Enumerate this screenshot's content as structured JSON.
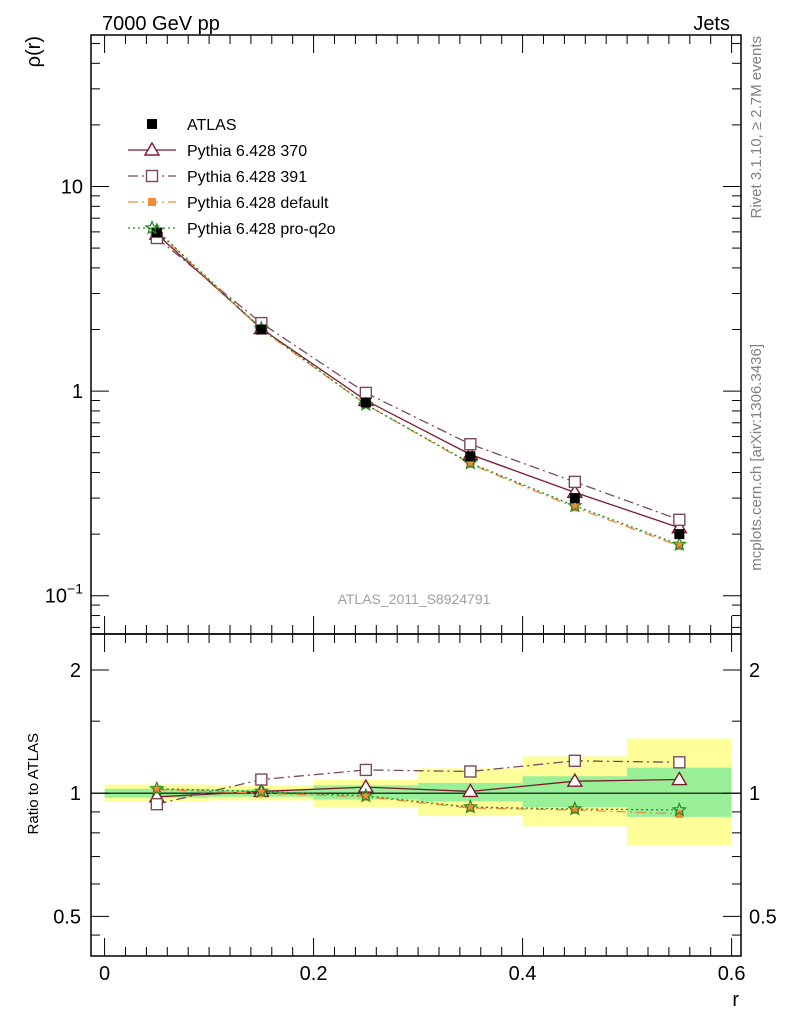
{
  "header": {
    "left": "7000 GeV pp",
    "right": "Jets"
  },
  "side_labels": {
    "rivet": "Rivet 3.1.10, ≥ 2.7M events",
    "mcplots": "mcplots.cern.ch [arXiv:1306.3436]"
  },
  "watermark": "ATLAS_2011_S8924791",
  "chart_data": [
    {
      "type": "line",
      "panel": "main",
      "ylabel": "ρ(r)",
      "yscale": "log",
      "ylim": [
        0.065,
        55
      ],
      "xlim": [
        -0.013,
        0.609
      ],
      "yticks": [
        {
          "v": 0.1,
          "label": "10",
          "sup": "−1"
        },
        {
          "v": 1,
          "label": "1",
          "sup": ""
        },
        {
          "v": 10,
          "label": "10",
          "sup": ""
        }
      ],
      "legend_position": "top-left",
      "series": [
        {
          "name": "ATLAS",
          "style": "data",
          "color": "#000000",
          "x": [
            0.05,
            0.15,
            0.25,
            0.35,
            0.45,
            0.55
          ],
          "y": [
            5.95,
            2.0,
            0.88,
            0.48,
            0.3,
            0.2
          ],
          "yerr": [
            0.25,
            0.06,
            0.04,
            0.02,
            0.015,
            0.01
          ]
        },
        {
          "name": "Pythia 6.428 370",
          "style": "solid",
          "marker": "triangle",
          "color": "#7a1a2a",
          "x": [
            0.05,
            0.15,
            0.25,
            0.35,
            0.45,
            0.55
          ],
          "y": [
            5.85,
            2.02,
            0.9,
            0.49,
            0.32,
            0.215
          ]
        },
        {
          "name": "Pythia 6.428 391",
          "style": "dashdot",
          "marker": "open-square",
          "color": "#7a4a5c",
          "x": [
            0.05,
            0.15,
            0.25,
            0.35,
            0.45,
            0.55
          ],
          "y": [
            5.6,
            2.15,
            0.98,
            0.55,
            0.36,
            0.235
          ]
        },
        {
          "name": "Pythia 6.428 default",
          "style": "dashdot",
          "marker": "filled-square",
          "color": "#f08a3c",
          "x": [
            0.05,
            0.15,
            0.25,
            0.35,
            0.45,
            0.55
          ],
          "y": [
            6.05,
            2.0,
            0.86,
            0.44,
            0.27,
            0.175
          ]
        },
        {
          "name": "Pythia 6.428 pro-q2o",
          "style": "dotted",
          "marker": "star",
          "color": "#1e8a1e",
          "x": [
            0.05,
            0.15,
            0.25,
            0.35,
            0.45,
            0.55
          ],
          "y": [
            6.1,
            2.02,
            0.86,
            0.445,
            0.275,
            0.178
          ]
        }
      ]
    },
    {
      "type": "line",
      "panel": "ratio",
      "ylabel": "Ratio to ATLAS",
      "xlabel": "r",
      "yscale": "log",
      "ylim": [
        0.4,
        2.45
      ],
      "xlim": [
        -0.013,
        0.609
      ],
      "xticks": [
        0,
        0.2,
        0.4,
        0.6
      ],
      "yticks": [
        0.5,
        1,
        2
      ],
      "uncertainty_bands": [
        {
          "xlo": 0.0,
          "xhi": 0.1,
          "yellow": [
            0.955,
            1.05
          ],
          "green": [
            0.975,
            1.025
          ]
        },
        {
          "xlo": 0.1,
          "xhi": 0.2,
          "yellow": [
            0.96,
            1.045
          ],
          "green": [
            0.98,
            1.02
          ]
        },
        {
          "xlo": 0.2,
          "xhi": 0.3,
          "yellow": [
            0.925,
            1.08
          ],
          "green": [
            0.965,
            1.045
          ]
        },
        {
          "xlo": 0.3,
          "xhi": 0.4,
          "yellow": [
            0.88,
            1.15
          ],
          "green": [
            0.955,
            1.06
          ]
        },
        {
          "xlo": 0.4,
          "xhi": 0.5,
          "yellow": [
            0.83,
            1.23
          ],
          "green": [
            0.925,
            1.1
          ]
        },
        {
          "xlo": 0.5,
          "xhi": 0.6,
          "yellow": [
            0.745,
            1.36
          ],
          "green": [
            0.875,
            1.155
          ]
        }
      ],
      "series": [
        {
          "name": "Pythia 6.428 370",
          "style": "solid",
          "marker": "triangle",
          "color": "#7a1a2a",
          "x": [
            0.05,
            0.15,
            0.25,
            0.35,
            0.45,
            0.55
          ],
          "y": [
            0.98,
            1.01,
            1.035,
            1.01,
            1.07,
            1.08
          ]
        },
        {
          "name": "Pythia 6.428 391",
          "style": "dashdot",
          "marker": "open-square",
          "color": "#7a4a5c",
          "x": [
            0.05,
            0.15,
            0.25,
            0.35,
            0.45,
            0.55
          ],
          "y": [
            0.94,
            1.08,
            1.14,
            1.13,
            1.2,
            1.19
          ]
        },
        {
          "name": "Pythia 6.428 default",
          "style": "dashdot",
          "marker": "filled-square",
          "color": "#f08a3c",
          "x": [
            0.05,
            0.15,
            0.25,
            0.35,
            0.45,
            0.55
          ],
          "y": [
            1.02,
            1.0,
            0.98,
            0.92,
            0.91,
            0.89
          ]
        },
        {
          "name": "Pythia 6.428 pro-q2o",
          "style": "dotted",
          "marker": "star",
          "color": "#1e8a1e",
          "x": [
            0.05,
            0.15,
            0.25,
            0.35,
            0.45,
            0.55
          ],
          "y": [
            1.025,
            1.01,
            0.985,
            0.925,
            0.915,
            0.91
          ]
        }
      ]
    }
  ]
}
